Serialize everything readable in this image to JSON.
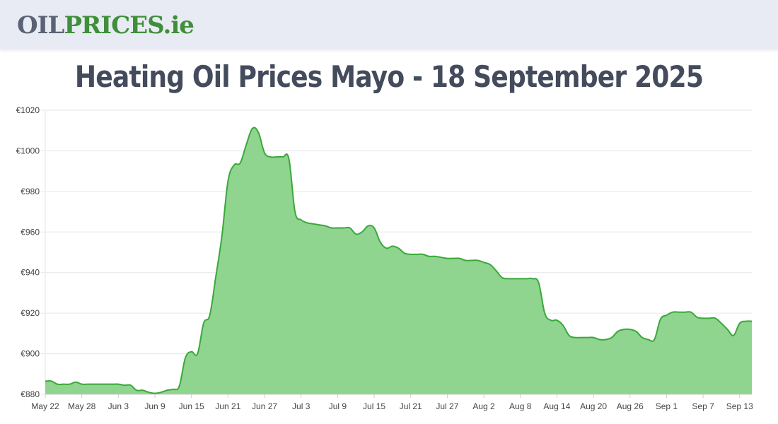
{
  "header": {
    "logo": {
      "part1": "OIL",
      "part2": "PRICES",
      "part3": ".ie"
    }
  },
  "page": {
    "title": "Heating Oil Prices Mayo - 18 September 2025"
  },
  "colors": {
    "line": "#3aa83a",
    "fill": "#8fd48f",
    "grid": "#e6e6e6",
    "axis": "#cccccc"
  },
  "chart_data": {
    "type": "area",
    "title": "",
    "xlabel": "",
    "ylabel": "",
    "ylim": [
      880,
      1020
    ],
    "yticks": [
      880,
      900,
      920,
      940,
      960,
      980,
      1000,
      1020
    ],
    "ytick_labels": [
      "€880",
      "€900",
      "€920",
      "€940",
      "€960",
      "€980",
      "€1000",
      "€1020"
    ],
    "xticks": [
      "May 22",
      "May 28",
      "Jun 3",
      "Jun 9",
      "Jun 15",
      "Jun 21",
      "Jun 27",
      "Jul 3",
      "Jul 9",
      "Jul 15",
      "Jul 21",
      "Jul 27",
      "Aug 2",
      "Aug 8",
      "Aug 14",
      "Aug 20",
      "Aug 26",
      "Sep 1",
      "Sep 7",
      "Sep 13"
    ],
    "grid": true,
    "series": [
      {
        "values": [
          886.5,
          886.5,
          885,
          885,
          885,
          886,
          885,
          885,
          885,
          885,
          885,
          885,
          885,
          884.5,
          884.5,
          882,
          882,
          881,
          880.5,
          881,
          882,
          882.5,
          884,
          898,
          901,
          900,
          915,
          919,
          938,
          958,
          985,
          993,
          994,
          1003,
          1011,
          1009,
          999,
          997,
          997,
          997,
          996,
          970,
          966,
          964.5,
          964,
          963.5,
          963,
          962,
          962,
          962,
          962,
          959,
          960,
          963,
          962,
          955,
          952,
          953,
          952,
          949.5,
          949,
          949,
          949,
          948,
          948,
          947.5,
          947,
          947,
          947,
          946,
          946,
          946,
          945,
          944,
          941,
          937.5,
          937,
          937,
          937,
          937,
          937,
          935,
          920,
          916.5,
          916.5,
          914,
          909,
          908,
          908,
          908,
          908,
          907,
          907,
          908,
          911,
          912,
          912,
          911,
          908,
          907,
          907,
          917,
          919,
          920.5,
          920.5,
          920.5,
          920.5,
          918,
          917.5,
          917.5,
          917.5,
          915,
          912,
          909,
          915,
          916,
          916
        ]
      }
    ]
  }
}
